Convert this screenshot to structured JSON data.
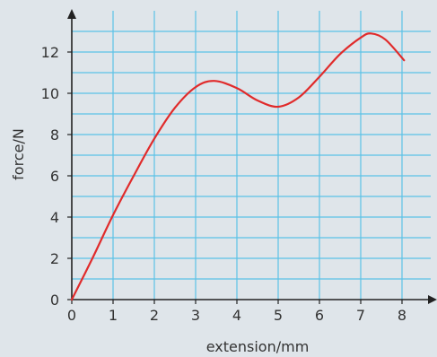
{
  "chart_data": {
    "type": "line",
    "title": "",
    "xlabel": "extension/mm",
    "ylabel": "force/N",
    "xlim": [
      0,
      8.6
    ],
    "ylim": [
      0,
      13.7
    ],
    "grid": true,
    "x_ticks": [
      0,
      1,
      2,
      3,
      4,
      5,
      6,
      7,
      8
    ],
    "y_ticks": [
      0,
      2,
      4,
      6,
      8,
      10,
      12
    ],
    "series": [
      {
        "color": "#e02b2b",
        "points": [
          [
            0,
            0
          ],
          [
            0.5,
            2.0
          ],
          [
            1.0,
            4.1
          ],
          [
            1.5,
            6.0
          ],
          [
            2.0,
            7.8
          ],
          [
            2.5,
            9.3
          ],
          [
            3.0,
            10.3
          ],
          [
            3.45,
            10.6
          ],
          [
            4.0,
            10.25
          ],
          [
            4.5,
            9.65
          ],
          [
            5.0,
            9.35
          ],
          [
            5.5,
            9.8
          ],
          [
            6.0,
            10.8
          ],
          [
            6.5,
            11.9
          ],
          [
            7.0,
            12.7
          ],
          [
            7.25,
            12.9
          ],
          [
            7.6,
            12.6
          ],
          [
            8.05,
            11.6
          ]
        ]
      }
    ],
    "colors": {
      "background": "#dfe5ea",
      "grid": "#5bc2e7",
      "axis": "#222222",
      "line": "#e02b2b"
    }
  }
}
